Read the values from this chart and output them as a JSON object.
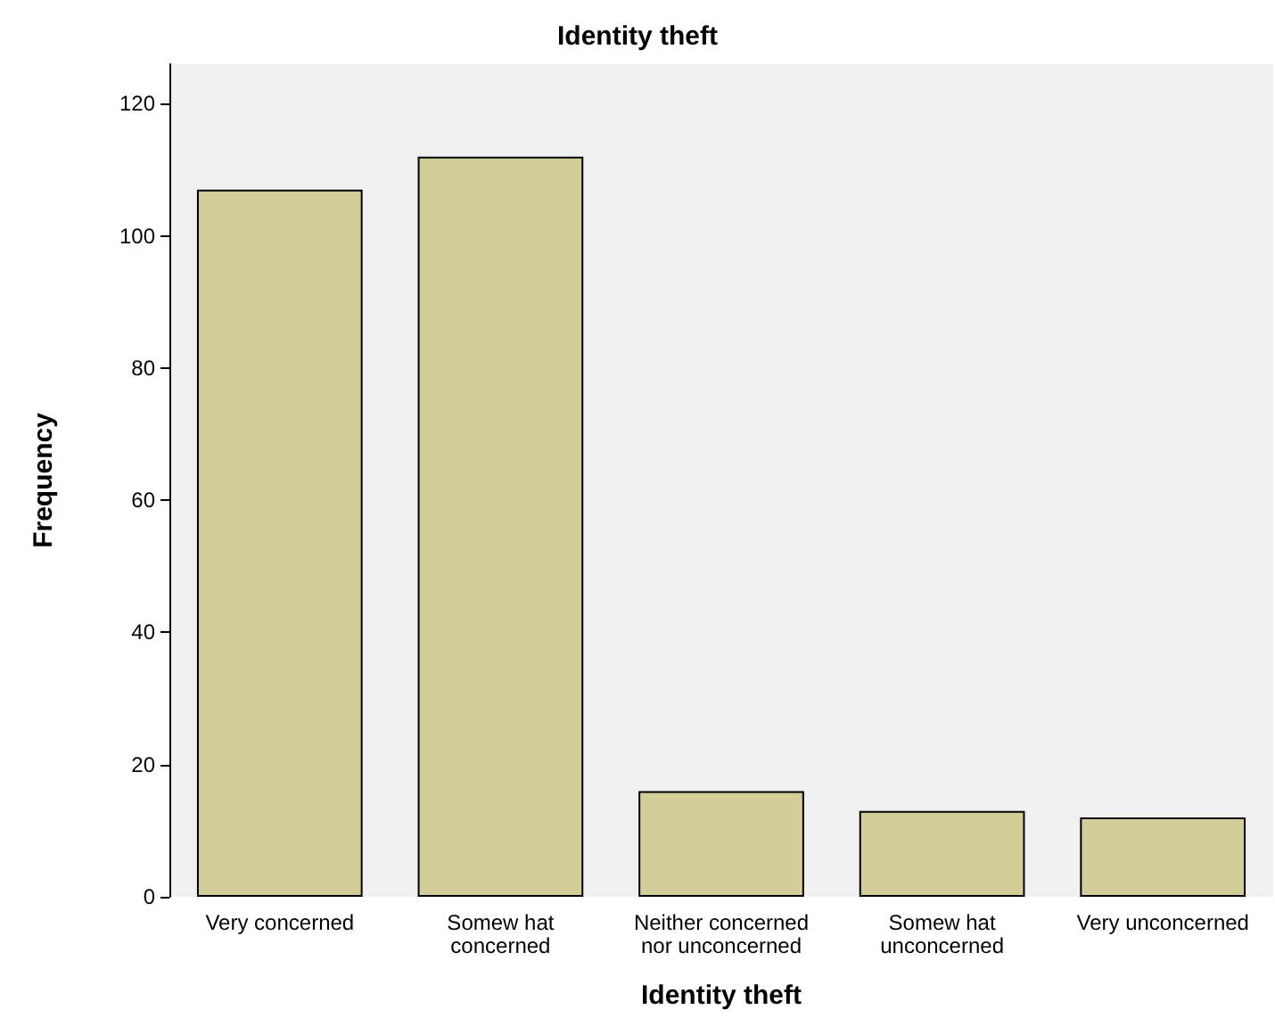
{
  "chart_data": {
    "type": "bar",
    "title": "Identity theft",
    "xlabel": "Identity theft",
    "ylabel": "Frequency",
    "categories": [
      "Very concerned",
      "Somew hat\nconcerned",
      "Neither concerned\nnor unconcerned",
      "Somew hat\nunconcerned",
      "Very unconcerned"
    ],
    "values": [
      107,
      112,
      16,
      13,
      12
    ],
    "color": "#d3ce98",
    "ylim": [
      0,
      126
    ],
    "yticks": [
      0,
      20,
      40,
      60,
      80,
      100,
      120
    ],
    "grid": false
  }
}
